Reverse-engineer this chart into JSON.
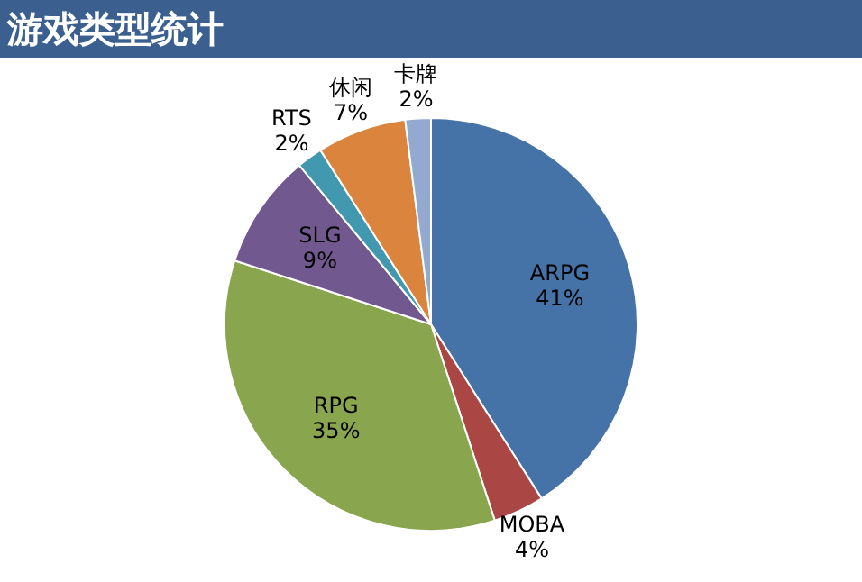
{
  "chart_data": {
    "type": "pie",
    "title": "游戏类型统计",
    "categories": [
      "ARPG",
      "MOBA",
      "RPG",
      "SLG",
      "RTS",
      "休闲",
      "卡牌"
    ],
    "values": [
      41,
      4,
      35,
      9,
      2,
      7,
      2
    ],
    "value_labels": [
      "41%",
      "4%",
      "35%",
      "9%",
      "2%",
      "7%",
      "2%"
    ],
    "colors": [
      "#4572a7",
      "#aa4643",
      "#89a54e",
      "#71588f",
      "#4198af",
      "#db843d",
      "#93a9cf"
    ],
    "legend": false
  }
}
